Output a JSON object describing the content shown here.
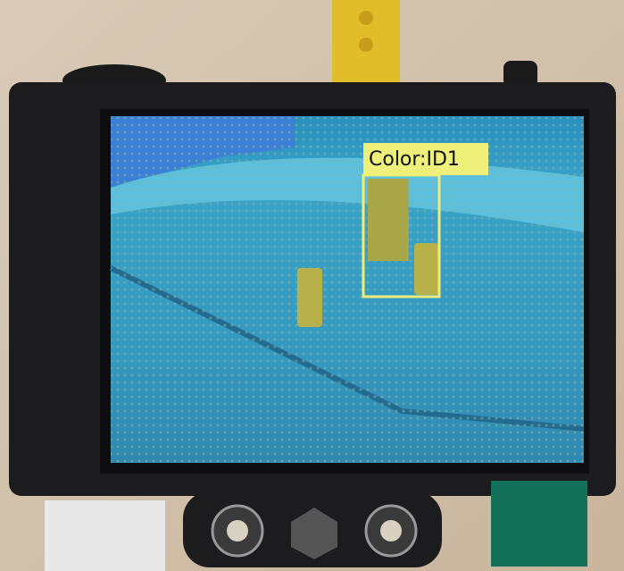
{
  "overlay": {
    "label": "Color:ID1"
  }
}
